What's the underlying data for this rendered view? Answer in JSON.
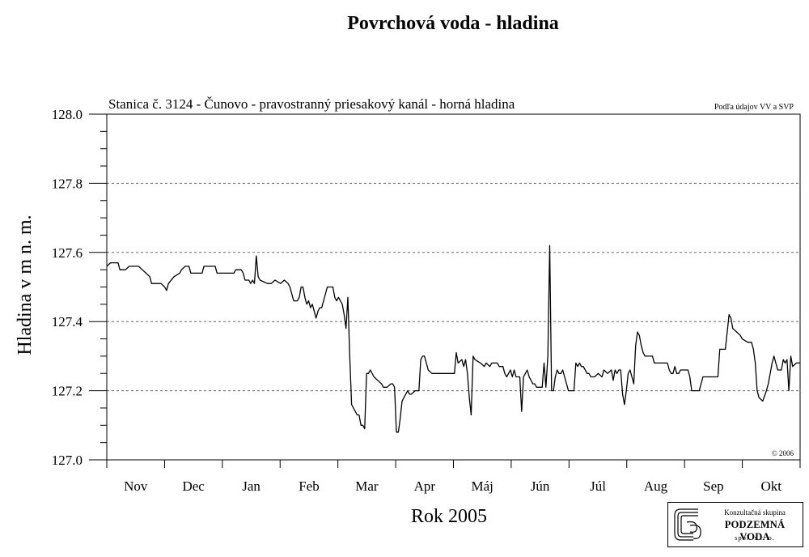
{
  "page_title": "Povrchová voda - hladina",
  "logo": {
    "line1": "Konzultačná skupina",
    "line2": "PODZEMNÁ VODA",
    "line3": "spol. s r. o."
  },
  "chart_data": {
    "type": "line",
    "title": "Povrchová voda - hladina",
    "subtitle": "Stanica č. 3124 - Čunovo - pravostranný priesakový kanál - horná hladina",
    "source_note": "Podľa údajov VV a SVP",
    "copyright": "© 2006",
    "xlabel": "Rok 2005",
    "ylabel": "Hladina v m n. m.",
    "ylim": [
      127.0,
      128.0
    ],
    "y_ticks": [
      "127.0",
      "127.2",
      "127.4",
      "127.6",
      "127.8",
      "128.0"
    ],
    "x_ticks": [
      "Nov",
      "Dec",
      "Jan",
      "Feb",
      "Mar",
      "Apr",
      "Máj",
      "Jún",
      "Júl",
      "Aug",
      "Sep",
      "Okt"
    ],
    "grid": "dashed horizontal at 127.2, 127.4, 127.6, 127.8",
    "line_color": "#000000",
    "x_unit": "days from 2004-11-01",
    "x_range": [
      0,
      371
    ],
    "points": [
      [
        0,
        127.56
      ],
      [
        2,
        127.57
      ],
      [
        6,
        127.57
      ],
      [
        7,
        127.55
      ],
      [
        10,
        127.55
      ],
      [
        12,
        127.56
      ],
      [
        17,
        127.56
      ],
      [
        19,
        127.55
      ],
      [
        21,
        127.54
      ],
      [
        23,
        127.53
      ],
      [
        24,
        127.51
      ],
      [
        26,
        127.51
      ],
      [
        29,
        127.51
      ],
      [
        31,
        127.5
      ],
      [
        32,
        127.49
      ],
      [
        33,
        127.51
      ],
      [
        36,
        127.53
      ],
      [
        39,
        127.54
      ],
      [
        40,
        127.55
      ],
      [
        42,
        127.56
      ],
      [
        44,
        127.56
      ],
      [
        45,
        127.54
      ],
      [
        51,
        127.54
      ],
      [
        52,
        127.56
      ],
      [
        58,
        127.56
      ],
      [
        59,
        127.54
      ],
      [
        61,
        127.54
      ],
      [
        68,
        127.54
      ],
      [
        69,
        127.55
      ],
      [
        72,
        127.55
      ],
      [
        73,
        127.54
      ],
      [
        74,
        127.52
      ],
      [
        76,
        127.52
      ],
      [
        77,
        127.51
      ],
      [
        78,
        127.52
      ],
      [
        79,
        127.51
      ],
      [
        80,
        127.59
      ],
      [
        81,
        127.53
      ],
      [
        82,
        127.52
      ],
      [
        86,
        127.51
      ],
      [
        88,
        127.51
      ],
      [
        90,
        127.52
      ],
      [
        93,
        127.51
      ],
      [
        95,
        127.52
      ],
      [
        97,
        127.51
      ],
      [
        98,
        127.5
      ],
      [
        99,
        127.48
      ],
      [
        100,
        127.46
      ],
      [
        101,
        127.46
      ],
      [
        102,
        127.46
      ],
      [
        103,
        127.47
      ],
      [
        104,
        127.5
      ],
      [
        105,
        127.5
      ],
      [
        106,
        127.47
      ],
      [
        107,
        127.45
      ],
      [
        108,
        127.46
      ],
      [
        109,
        127.44
      ],
      [
        110,
        127.45
      ],
      [
        111,
        127.43
      ],
      [
        112,
        127.41
      ],
      [
        113,
        127.43
      ],
      [
        114,
        127.44
      ],
      [
        115,
        127.44
      ],
      [
        116,
        127.46
      ],
      [
        117,
        127.48
      ],
      [
        118,
        127.5
      ],
      [
        119,
        127.5
      ],
      [
        121,
        127.5
      ],
      [
        122,
        127.47
      ],
      [
        123,
        127.46
      ],
      [
        124,
        127.47
      ],
      [
        125,
        127.46
      ],
      [
        126,
        127.45
      ],
      [
        127,
        127.42
      ],
      [
        128,
        127.38
      ],
      [
        129,
        127.47
      ],
      [
        130,
        127.3
      ],
      [
        131,
        127.16
      ],
      [
        132,
        127.15
      ],
      [
        133,
        127.14
      ],
      [
        134,
        127.13
      ],
      [
        135,
        127.13
      ],
      [
        136,
        127.1
      ],
      [
        137,
        127.1
      ],
      [
        138,
        127.09
      ],
      [
        139,
        127.25
      ],
      [
        140,
        127.25
      ],
      [
        141,
        127.26
      ],
      [
        142,
        127.25
      ],
      [
        143,
        127.24
      ],
      [
        145,
        127.23
      ],
      [
        147,
        127.22
      ],
      [
        148,
        127.21
      ],
      [
        150,
        127.21
      ],
      [
        152,
        127.22
      ],
      [
        153,
        127.22
      ],
      [
        154,
        127.21
      ],
      [
        155,
        127.08
      ],
      [
        156,
        127.08
      ],
      [
        157,
        127.12
      ],
      [
        158,
        127.17
      ],
      [
        159,
        127.18
      ],
      [
        161,
        127.2
      ],
      [
        162,
        127.19
      ],
      [
        163,
        127.19
      ],
      [
        165,
        127.2
      ],
      [
        167,
        127.2
      ],
      [
        168,
        127.29
      ],
      [
        169,
        127.3
      ],
      [
        170,
        127.3
      ],
      [
        171,
        127.28
      ],
      [
        172,
        127.26
      ],
      [
        174,
        127.25
      ],
      [
        186,
        127.25
      ],
      [
        187,
        127.31
      ],
      [
        188,
        127.28
      ],
      [
        190,
        127.29
      ],
      [
        191,
        127.27
      ],
      [
        192,
        127.29
      ],
      [
        193,
        127.25
      ],
      [
        194,
        127.18
      ],
      [
        195,
        127.13
      ],
      [
        196,
        127.3
      ],
      [
        197,
        127.29
      ],
      [
        200,
        127.28
      ],
      [
        202,
        127.27
      ],
      [
        203,
        127.28
      ],
      [
        205,
        127.27
      ],
      [
        206,
        127.28
      ],
      [
        209,
        127.28
      ],
      [
        210,
        127.27
      ],
      [
        212,
        127.27
      ],
      [
        213,
        127.25
      ],
      [
        214,
        127.24
      ],
      [
        216,
        127.26
      ],
      [
        217,
        127.24
      ],
      [
        218,
        127.26
      ],
      [
        219,
        127.24
      ],
      [
        221,
        127.24
      ],
      [
        222,
        127.14
      ],
      [
        223,
        127.24
      ],
      [
        224,
        127.25
      ],
      [
        225,
        127.26
      ],
      [
        226,
        127.24
      ],
      [
        228,
        127.22
      ],
      [
        229,
        127.22
      ],
      [
        230,
        127.21
      ],
      [
        231,
        127.21
      ],
      [
        233,
        127.21
      ],
      [
        234,
        127.28
      ],
      [
        235,
        127.21
      ],
      [
        236,
        127.3
      ],
      [
        237,
        127.62
      ],
      [
        238,
        127.2
      ],
      [
        239,
        127.2
      ],
      [
        240,
        127.24
      ],
      [
        241,
        127.26
      ],
      [
        242,
        127.25
      ],
      [
        243,
        127.25
      ],
      [
        244,
        127.26
      ],
      [
        245,
        127.24
      ],
      [
        246,
        127.22
      ],
      [
        247,
        127.2
      ],
      [
        250,
        127.2
      ],
      [
        251,
        127.28
      ],
      [
        252,
        127.27
      ],
      [
        253,
        127.28
      ],
      [
        254,
        127.27
      ],
      [
        255,
        127.27
      ],
      [
        256,
        127.26
      ],
      [
        257,
        127.25
      ],
      [
        258,
        127.25
      ],
      [
        259,
        127.24
      ],
      [
        261,
        127.24
      ],
      [
        263,
        127.25
      ],
      [
        265,
        127.24
      ],
      [
        266,
        127.26
      ],
      [
        268,
        127.25
      ],
      [
        270,
        127.26
      ],
      [
        271,
        127.23
      ],
      [
        272,
        127.26
      ],
      [
        273,
        127.25
      ],
      [
        274,
        127.26
      ],
      [
        275,
        127.26
      ],
      [
        276,
        127.19
      ],
      [
        277,
        127.16
      ],
      [
        278,
        127.2
      ],
      [
        279,
        127.25
      ],
      [
        280,
        127.26
      ],
      [
        281,
        127.24
      ],
      [
        282,
        127.22
      ],
      [
        283,
        127.33
      ],
      [
        284,
        127.37
      ],
      [
        285,
        127.36
      ],
      [
        286,
        127.33
      ],
      [
        287,
        127.31
      ],
      [
        288,
        127.3
      ],
      [
        292,
        127.3
      ],
      [
        293,
        127.28
      ],
      [
        300,
        127.28
      ],
      [
        301,
        127.26
      ],
      [
        302,
        127.25
      ],
      [
        303,
        127.25
      ],
      [
        304,
        127.27
      ],
      [
        305,
        127.25
      ],
      [
        306,
        127.25
      ],
      [
        307,
        127.26
      ],
      [
        311,
        127.26
      ],
      [
        312,
        127.24
      ],
      [
        313,
        127.2
      ],
      [
        317,
        127.2
      ],
      [
        318,
        127.22
      ],
      [
        319,
        127.24
      ],
      [
        327,
        127.24
      ],
      [
        328,
        127.32
      ],
      [
        331,
        127.32
      ],
      [
        332,
        127.37
      ],
      [
        333,
        127.42
      ],
      [
        334,
        127.41
      ],
      [
        335,
        127.38
      ],
      [
        337,
        127.37
      ],
      [
        339,
        127.36
      ],
      [
        340,
        127.35
      ],
      [
        343,
        127.34
      ],
      [
        345,
        127.34
      ],
      [
        346,
        127.32
      ],
      [
        347,
        127.28
      ],
      [
        348,
        127.2
      ],
      [
        349,
        127.18
      ],
      [
        351,
        127.17
      ],
      [
        353,
        127.2
      ],
      [
        354,
        127.22
      ],
      [
        356,
        127.28
      ],
      [
        357,
        127.3
      ],
      [
        358,
        127.28
      ],
      [
        359,
        127.26
      ],
      [
        361,
        127.26
      ],
      [
        362,
        127.29
      ],
      [
        363,
        127.28
      ],
      [
        364,
        127.29
      ],
      [
        365,
        127.2
      ],
      [
        366,
        127.3
      ],
      [
        367,
        127.27
      ],
      [
        369,
        127.28
      ],
      [
        371,
        127.28
      ]
    ]
  }
}
